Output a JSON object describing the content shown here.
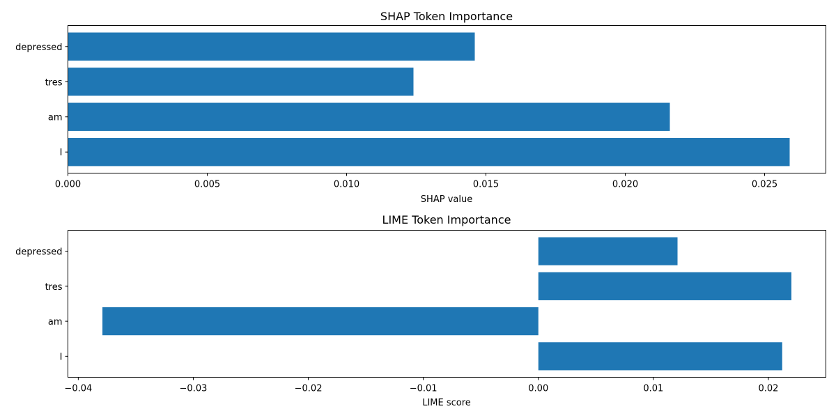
{
  "colors": {
    "bar": "#1f77b4",
    "axis": "#000000"
  },
  "chart_data": [
    {
      "type": "bar",
      "orientation": "horizontal",
      "title": "SHAP Token Importance",
      "xlabel": "SHAP value",
      "ylabel": "",
      "categories": [
        "I",
        "am",
        "tres",
        "depressed"
      ],
      "values": [
        0.0259,
        0.0216,
        0.0124,
        0.0146
      ],
      "xlim": [
        0,
        0.0272
      ],
      "xticks": [
        0,
        0.005,
        0.01,
        0.015,
        0.02,
        0.025
      ],
      "xtick_labels": [
        "0.000",
        "0.005",
        "0.010",
        "0.015",
        "0.020",
        "0.025"
      ],
      "grid": false,
      "legend": "none"
    },
    {
      "type": "bar",
      "orientation": "horizontal",
      "title": "LIME Token Importance",
      "xlabel": "LIME score",
      "ylabel": "",
      "categories": [
        "I",
        "am",
        "tres",
        "depressed"
      ],
      "values": [
        0.0212,
        -0.0379,
        0.022,
        0.0121
      ],
      "xlim": [
        -0.0409,
        0.025
      ],
      "xticks": [
        -0.04,
        -0.03,
        -0.02,
        -0.01,
        0,
        0.01,
        0.02
      ],
      "xtick_labels": [
        "−0.04",
        "−0.03",
        "−0.02",
        "−0.01",
        "0.00",
        "0.01",
        "0.02"
      ],
      "grid": false,
      "legend": "none"
    }
  ]
}
